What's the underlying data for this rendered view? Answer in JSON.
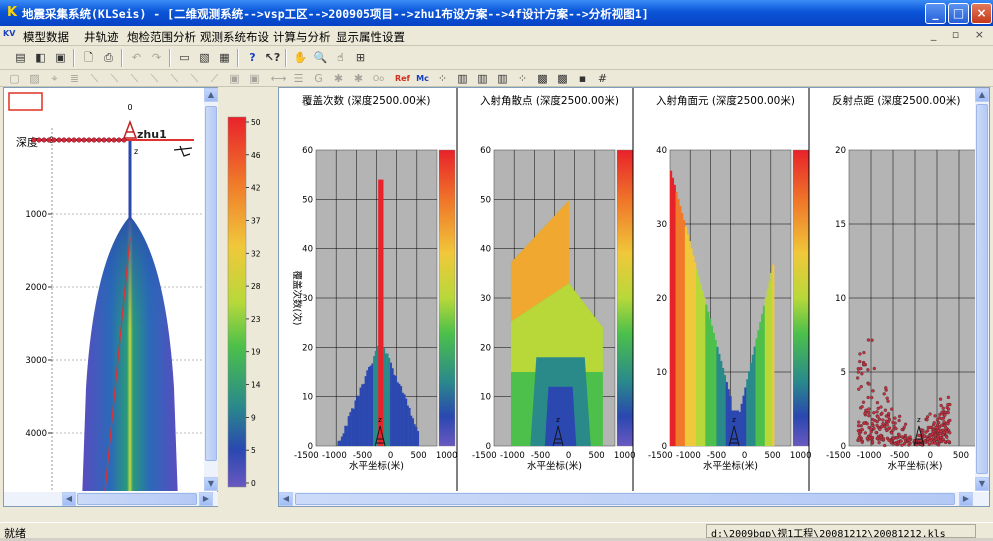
{
  "window": {
    "title": "地震采集系统(KLSeis) - [二维观测系统-->vsp工区-->200905项目-->zhu1布设方案-->4f设计方案-->分析视图1]",
    "icon": "K",
    "buttons": {
      "minimize": "_",
      "maximize": "□",
      "close": "×"
    }
  },
  "menu": {
    "items": [
      "模型数据",
      "井轨迹",
      "炮检范围分析",
      "观测系统布设",
      "计算与分析",
      "显示属性设置"
    ],
    "mdi_buttons": "_ ▫ ×"
  },
  "toolbar1": {
    "icons": [
      "new-icon",
      "open-icon",
      "save-icon",
      "print-preview-icon",
      "print-icon",
      "undo-icon",
      "redo-icon",
      "view-icon",
      "export-icon",
      "chart-icon",
      "help-icon",
      "context-help-icon",
      "pan-icon",
      "zoom-icon",
      "select-icon",
      "fit-icon"
    ],
    "glyphs": [
      "▤",
      "◧",
      "▣",
      "🗋",
      "⎙",
      "↶",
      "↷",
      "▭",
      "▧",
      "▦",
      "?",
      "↖?",
      "✋",
      "🔍",
      "☝",
      "⊞"
    ]
  },
  "toolbar2": {
    "glyphs": [
      "▢",
      "▨",
      "⌖",
      "≣",
      "⟍",
      "⟍",
      "⟍",
      "⟍",
      "⟍",
      "⟍",
      "⟋",
      "▣",
      "▣",
      "⟷",
      "☰",
      "G",
      "✱",
      "✱",
      "Oo",
      "Ref",
      "Mc",
      "⁘",
      "▥",
      "▥",
      "▥",
      "⁘",
      "▩",
      "▩",
      "▪",
      "#"
    ]
  },
  "left_view": {
    "depth_label": "深度",
    "well_name": "zhu1",
    "top_tick": "0",
    "z_label": "z",
    "depth_ticks": [
      "0",
      "1000",
      "2000",
      "3000",
      "4000"
    ],
    "colorbar_ticks": [
      "50",
      "46",
      "42",
      "37",
      "32",
      "28",
      "23",
      "19",
      "14",
      "9",
      "5",
      "0"
    ]
  },
  "panels": [
    {
      "title": "覆盖次数  (深度2500.00米)",
      "ylabel": "覆盖次数(次)",
      "yticks": [
        "0",
        "10",
        "20",
        "30",
        "40",
        "50",
        "60"
      ],
      "xticks": [
        "-1500",
        "-1000",
        "-500",
        "0",
        "500",
        "1000"
      ],
      "xlabel": "水平坐标(米)"
    },
    {
      "title": "入射角散点  (深度2500.00米)",
      "yticks": [
        "0",
        "10",
        "20",
        "30",
        "40",
        "50",
        "60"
      ],
      "xticks": [
        "-1500",
        "-1000",
        "-500",
        "0",
        "500",
        "1000"
      ],
      "xlabel": "水平坐标(米)"
    },
    {
      "title": "入射角面元  (深度2500.00米)",
      "yticks": [
        "0",
        "10",
        "20",
        "30",
        "40"
      ],
      "xticks": [
        "-1500",
        "-1000",
        "-500",
        "0",
        "500",
        "1000"
      ],
      "xlabel": "水平坐标(米)"
    },
    {
      "title": "反射点距  (深度2500.00米)",
      "yticks": [
        "0",
        "5",
        "10",
        "15",
        "20"
      ],
      "xticks": [
        "-1500",
        "-1000",
        "-500",
        "0",
        "500",
        "1000"
      ],
      "xlabel": "水平坐标(米)"
    }
  ],
  "status": {
    "left": "就绪",
    "path": "d:\\2009bgp\\视1工程\\20081212\\20081212.kls"
  }
}
